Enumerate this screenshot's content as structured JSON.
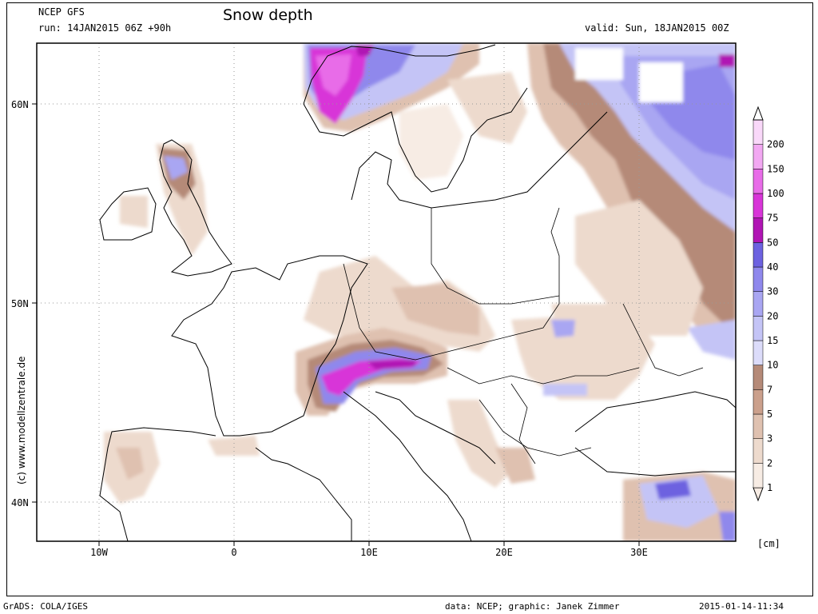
{
  "header": {
    "model": "NCEP GFS",
    "run": "run: 14JAN2015 06Z +90h",
    "title": "Snow depth",
    "valid": "valid: Sun, 18JAN2015 00Z"
  },
  "map": {
    "lat_labels": [
      "60N",
      "50N",
      "40N"
    ],
    "lon_labels": [
      "10W",
      "0",
      "10E",
      "20E",
      "30E"
    ],
    "watermark": "(c) www.modellzentrale.de"
  },
  "legend": {
    "levels": [
      "1",
      "2",
      "3",
      "5",
      "7",
      "10",
      "15",
      "20",
      "30",
      "40",
      "50",
      "75",
      "100",
      "150",
      "200"
    ],
    "unit": "[cm]",
    "colors": [
      "#f7ece4",
      "#eddacd",
      "#dfc1b0",
      "#cba08c",
      "#b58a78",
      "#dcdcfa",
      "#c4c4f6",
      "#a9a6f2",
      "#8f88ec",
      "#6d62e0",
      "#b015b4",
      "#d835d8",
      "#e86ce8",
      "#f2a8f2",
      "#f9d8f9"
    ]
  },
  "footer": {
    "grads": "GrADS: COLA/IGES",
    "credit": "data: NCEP; graphic: Janek Zimmer",
    "timestamp": "2015-01-14-11:34"
  }
}
